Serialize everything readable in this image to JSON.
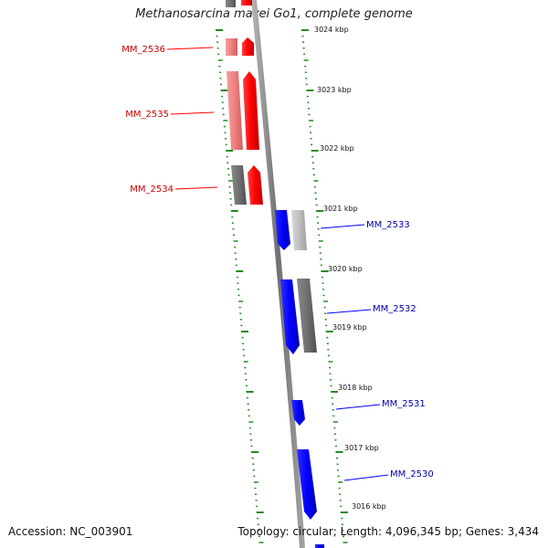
{
  "title": "Methanosarcina mazei Go1, complete genome",
  "accession": "Accession: NC_003901",
  "summary": "Topology: circular; Length: 4,096,345 bp; Genes: 3,434",
  "colors": {
    "forward": "#ff0000",
    "forward_light": "#f08080",
    "reverse": "#0000ff",
    "grey": "#707070",
    "light_grey": "#c0c0c0",
    "tick": "#228b22",
    "backbone": "#808080"
  },
  "scale_labels": [
    "3024 kbp",
    "3023 kbp",
    "3022 kbp",
    "3021 kbp",
    "3020 kbp",
    "3019 kbp",
    "3018 kbp",
    "3017 kbp",
    "3016 kbp"
  ],
  "genes_forward": [
    {
      "label": "MM_2536"
    },
    {
      "label": "MM_2535"
    },
    {
      "label": "MM_2534"
    }
  ],
  "genes_reverse": [
    {
      "label": "MM_2533"
    },
    {
      "label": "MM_2532"
    },
    {
      "label": "MM_2531"
    },
    {
      "label": "MM_2530"
    }
  ]
}
